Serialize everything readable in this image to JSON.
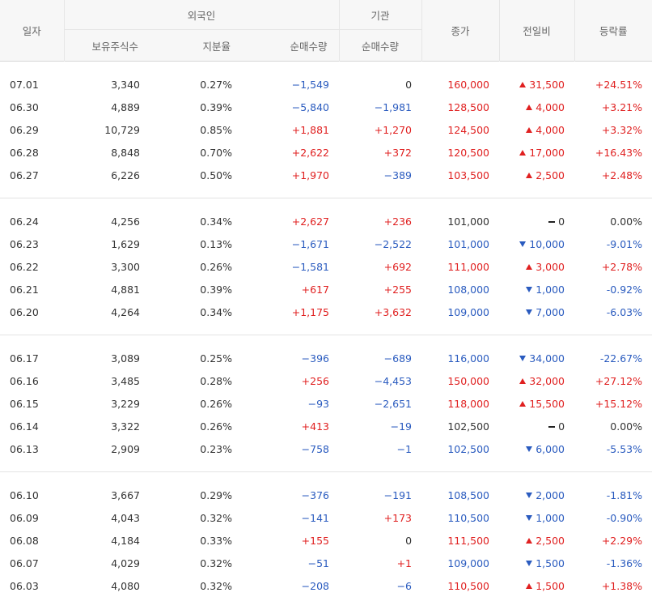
{
  "header": {
    "date": "일자",
    "foreign": "외국인",
    "institution": "기관",
    "holdings": "보유주식수",
    "ratio": "지분율",
    "foreign_net": "순매수량",
    "inst_net": "순매수량",
    "close": "종가",
    "diff": "전일비",
    "rate": "등락률"
  },
  "groups": [
    [
      {
        "date": "07.01",
        "holdings": "3,340",
        "ratio": "0.27%",
        "fnet": "−1,549",
        "fdir": "down",
        "inet": "0",
        "idir": "flat",
        "close": "160,000",
        "dir": "up",
        "diff": "31,500",
        "rate": "+24.51%"
      },
      {
        "date": "06.30",
        "holdings": "4,889",
        "ratio": "0.39%",
        "fnet": "−5,840",
        "fdir": "down",
        "inet": "−1,981",
        "idir": "down",
        "close": "128,500",
        "dir": "up",
        "diff": "4,000",
        "rate": "+3.21%"
      },
      {
        "date": "06.29",
        "holdings": "10,729",
        "ratio": "0.85%",
        "fnet": "+1,881",
        "fdir": "up",
        "inet": "+1,270",
        "idir": "up",
        "close": "124,500",
        "dir": "up",
        "diff": "4,000",
        "rate": "+3.32%"
      },
      {
        "date": "06.28",
        "holdings": "8,848",
        "ratio": "0.70%",
        "fnet": "+2,622",
        "fdir": "up",
        "inet": "+372",
        "idir": "up",
        "close": "120,500",
        "dir": "up",
        "diff": "17,000",
        "rate": "+16.43%"
      },
      {
        "date": "06.27",
        "holdings": "6,226",
        "ratio": "0.50%",
        "fnet": "+1,970",
        "fdir": "up",
        "inet": "−389",
        "idir": "down",
        "close": "103,500",
        "dir": "up",
        "diff": "2,500",
        "rate": "+2.48%"
      }
    ],
    [
      {
        "date": "06.24",
        "holdings": "4,256",
        "ratio": "0.34%",
        "fnet": "+2,627",
        "fdir": "up",
        "inet": "+236",
        "idir": "up",
        "close": "101,000",
        "dir": "flat",
        "diff": "0",
        "rate": "0.00%"
      },
      {
        "date": "06.23",
        "holdings": "1,629",
        "ratio": "0.13%",
        "fnet": "−1,671",
        "fdir": "down",
        "inet": "−2,522",
        "idir": "down",
        "close": "101,000",
        "dir": "down",
        "diff": "10,000",
        "rate": "-9.01%"
      },
      {
        "date": "06.22",
        "holdings": "3,300",
        "ratio": "0.26%",
        "fnet": "−1,581",
        "fdir": "down",
        "inet": "+692",
        "idir": "up",
        "close": "111,000",
        "dir": "up",
        "diff": "3,000",
        "rate": "+2.78%"
      },
      {
        "date": "06.21",
        "holdings": "4,881",
        "ratio": "0.39%",
        "fnet": "+617",
        "fdir": "up",
        "inet": "+255",
        "idir": "up",
        "close": "108,000",
        "dir": "down",
        "diff": "1,000",
        "rate": "-0.92%"
      },
      {
        "date": "06.20",
        "holdings": "4,264",
        "ratio": "0.34%",
        "fnet": "+1,175",
        "fdir": "up",
        "inet": "+3,632",
        "idir": "up",
        "close": "109,000",
        "dir": "down",
        "diff": "7,000",
        "rate": "-6.03%"
      }
    ],
    [
      {
        "date": "06.17",
        "holdings": "3,089",
        "ratio": "0.25%",
        "fnet": "−396",
        "fdir": "down",
        "inet": "−689",
        "idir": "down",
        "close": "116,000",
        "dir": "down",
        "diff": "34,000",
        "rate": "-22.67%"
      },
      {
        "date": "06.16",
        "holdings": "3,485",
        "ratio": "0.28%",
        "fnet": "+256",
        "fdir": "up",
        "inet": "−4,453",
        "idir": "down",
        "close": "150,000",
        "dir": "up",
        "diff": "32,000",
        "rate": "+27.12%"
      },
      {
        "date": "06.15",
        "holdings": "3,229",
        "ratio": "0.26%",
        "fnet": "−93",
        "fdir": "down",
        "inet": "−2,651",
        "idir": "down",
        "close": "118,000",
        "dir": "up",
        "diff": "15,500",
        "rate": "+15.12%"
      },
      {
        "date": "06.14",
        "holdings": "3,322",
        "ratio": "0.26%",
        "fnet": "+413",
        "fdir": "up",
        "inet": "−19",
        "idir": "down",
        "close": "102,500",
        "dir": "flat",
        "diff": "0",
        "rate": "0.00%"
      },
      {
        "date": "06.13",
        "holdings": "2,909",
        "ratio": "0.23%",
        "fnet": "−758",
        "fdir": "down",
        "inet": "−1",
        "idir": "down",
        "close": "102,500",
        "dir": "down",
        "diff": "6,000",
        "rate": "-5.53%"
      }
    ],
    [
      {
        "date": "06.10",
        "holdings": "3,667",
        "ratio": "0.29%",
        "fnet": "−376",
        "fdir": "down",
        "inet": "−191",
        "idir": "down",
        "close": "108,500",
        "dir": "down",
        "diff": "2,000",
        "rate": "-1.81%"
      },
      {
        "date": "06.09",
        "holdings": "4,043",
        "ratio": "0.32%",
        "fnet": "−141",
        "fdir": "down",
        "inet": "+173",
        "idir": "up",
        "close": "110,500",
        "dir": "down",
        "diff": "1,000",
        "rate": "-0.90%"
      },
      {
        "date": "06.08",
        "holdings": "4,184",
        "ratio": "0.33%",
        "fnet": "+155",
        "fdir": "up",
        "inet": "0",
        "idir": "flat",
        "close": "111,500",
        "dir": "up",
        "diff": "2,500",
        "rate": "+2.29%"
      },
      {
        "date": "06.07",
        "holdings": "4,029",
        "ratio": "0.32%",
        "fnet": "−51",
        "fdir": "down",
        "inet": "+1",
        "idir": "up",
        "close": "109,000",
        "dir": "down",
        "diff": "1,500",
        "rate": "-1.36%"
      },
      {
        "date": "06.03",
        "holdings": "4,080",
        "ratio": "0.32%",
        "fnet": "−208",
        "fdir": "down",
        "inet": "−6",
        "idir": "down",
        "close": "110,500",
        "dir": "up",
        "diff": "1,500",
        "rate": "+1.38%"
      }
    ]
  ]
}
